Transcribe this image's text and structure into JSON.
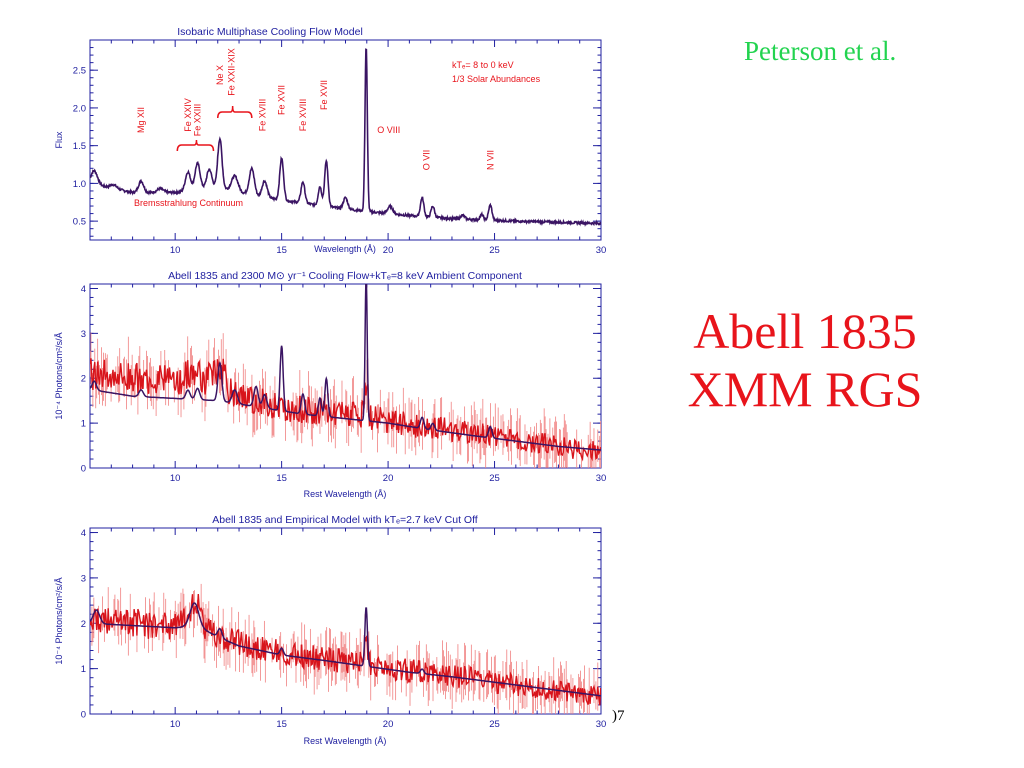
{
  "credit": "Peterson et al.",
  "headline": {
    "line1": "Abell 1835",
    "line2": "XMM RGS"
  },
  "footer_fragment": ")7",
  "colors": {
    "frame": "#2020a0",
    "model": "#3a1463",
    "data": "#d8141b",
    "data_err": "#f08080",
    "label": "#e8141b",
    "credit": "#22d34f"
  },
  "chart_data": [
    {
      "type": "line",
      "title": "Isobaric Multiphase Cooling Flow Model",
      "xlabel": "Wavelength (Å)",
      "ylabel": "Flux",
      "xlim": [
        6,
        30
      ],
      "ylim": [
        0.25,
        2.9
      ],
      "xticks": [
        10,
        15,
        20,
        25,
        30
      ],
      "yticks": [
        0.5,
        1.0,
        1.5,
        2.0,
        2.5
      ],
      "ytick_labels": [
        "0.5",
        "1.0",
        "1.5",
        "2.0",
        "2.5"
      ],
      "legend_lines": [
        "kTₑ= 8 to 0 keV",
        "1/3 Solar Abundances"
      ],
      "continuum_label": "Bremsstrahlung Continuum",
      "line_labels": [
        {
          "text": "Mg XII",
          "x": 8.4
        },
        {
          "text": "Fe XXIV",
          "x": 10.6
        },
        {
          "text": "Fe XXIII",
          "x": 11.05
        },
        {
          "text": "Ne X",
          "x": 12.1
        },
        {
          "text": "Fe XXII-XIX",
          "x": 12.65
        },
        {
          "text": "Fe XVIII",
          "x": 14.1
        },
        {
          "text": "Fe XVII",
          "x": 15.0
        },
        {
          "text": "Fe XVIII",
          "x": 16.0
        },
        {
          "text": "Fe XVII",
          "x": 17.0
        },
        {
          "text": "O VIII",
          "x": 19.4
        },
        {
          "text": "O VII",
          "x": 21.8
        },
        {
          "text": "N VII",
          "x": 24.8
        }
      ],
      "series": [
        {
          "continuum": [
            [
              6,
              1.0
            ],
            [
              8,
              0.88
            ],
            [
              10,
              0.88
            ],
            [
              12,
              0.95
            ],
            [
              14,
              0.82
            ],
            [
              16,
              0.74
            ],
            [
              18,
              0.66
            ],
            [
              20,
              0.6
            ],
            [
              22,
              0.55
            ],
            [
              24,
              0.52
            ],
            [
              26,
              0.5
            ],
            [
              30,
              0.47
            ]
          ],
          "lines": [
            [
              6.2,
              0.18,
              0.15
            ],
            [
              7.1,
              0.05,
              0.15
            ],
            [
              8.4,
              0.15,
              0.12
            ],
            [
              9.3,
              0.05,
              0.15
            ],
            [
              10.6,
              0.25,
              0.12
            ],
            [
              11.05,
              0.35,
              0.12
            ],
            [
              11.6,
              0.25,
              0.12
            ],
            [
              12.1,
              0.65,
              0.1
            ],
            [
              12.8,
              0.2,
              0.15
            ],
            [
              13.6,
              0.35,
              0.12
            ],
            [
              14.2,
              0.22,
              0.12
            ],
            [
              15.0,
              0.55,
              0.09
            ],
            [
              16.0,
              0.28,
              0.09
            ],
            [
              16.8,
              0.25,
              0.08
            ],
            [
              17.1,
              0.6,
              0.08
            ],
            [
              18.0,
              0.15,
              0.1
            ],
            [
              18.97,
              2.18,
              0.055
            ],
            [
              20.1,
              0.1,
              0.12
            ],
            [
              21.6,
              0.25,
              0.08
            ],
            [
              22.1,
              0.15,
              0.08
            ],
            [
              23.5,
              0.05,
              0.1
            ],
            [
              24.4,
              0.07,
              0.08
            ],
            [
              24.8,
              0.2,
              0.08
            ]
          ]
        }
      ]
    },
    {
      "type": "line",
      "title": "Abell 1835 and 2300 M⊙ yr⁻¹ Cooling Flow+kTₑ=8 keV Ambient Component",
      "xlabel": "Rest Wavelength (Å)",
      "ylabel": "10⁻⁴ Photons/cm²/s/Å",
      "xlim": [
        6,
        30
      ],
      "ylim": [
        0,
        4.1
      ],
      "xticks": [
        10,
        15,
        20,
        25,
        30
      ],
      "yticks": [
        0,
        1,
        2,
        3,
        4
      ],
      "ytick_labels": [
        "0",
        "1",
        "2",
        "3",
        "4"
      ],
      "series": [
        {
          "name": "data",
          "continuum": [
            [
              6,
              2.1
            ],
            [
              8,
              2.0
            ],
            [
              10,
              1.95
            ],
            [
              11.5,
              1.85
            ],
            [
              13,
              1.6
            ],
            [
              15,
              1.35
            ],
            [
              17,
              1.25
            ],
            [
              19,
              1.15
            ],
            [
              21,
              0.95
            ],
            [
              23,
              0.85
            ],
            [
              25,
              0.7
            ],
            [
              27,
              0.55
            ],
            [
              29,
              0.42
            ],
            [
              30,
              0.4
            ]
          ],
          "lines": [
            [
              10.9,
              0.3,
              0.3
            ],
            [
              11.8,
              0.3,
              0.2
            ],
            [
              12.2,
              0.4,
              0.15
            ],
            [
              18.97,
              0.7,
              0.08
            ]
          ],
          "scatter": 0.35
        },
        {
          "name": "model",
          "continuum": [
            [
              6,
              1.75
            ],
            [
              8,
              1.6
            ],
            [
              10,
              1.55
            ],
            [
              12,
              1.5
            ],
            [
              14,
              1.35
            ],
            [
              16,
              1.2
            ],
            [
              18,
              1.1
            ],
            [
              20,
              1.0
            ],
            [
              22,
              0.85
            ],
            [
              24,
              0.72
            ],
            [
              26,
              0.6
            ],
            [
              28,
              0.48
            ],
            [
              30,
              0.4
            ]
          ],
          "lines": [
            [
              6.2,
              0.2,
              0.1
            ],
            [
              8.4,
              0.15,
              0.1
            ],
            [
              10.6,
              0.2,
              0.1
            ],
            [
              11.05,
              0.25,
              0.1
            ],
            [
              12.1,
              0.85,
              0.09
            ],
            [
              12.8,
              0.3,
              0.12
            ],
            [
              13.8,
              0.45,
              0.1
            ],
            [
              14.2,
              0.3,
              0.1
            ],
            [
              15.0,
              1.45,
              0.07
            ],
            [
              16.0,
              0.45,
              0.08
            ],
            [
              16.8,
              0.4,
              0.07
            ],
            [
              17.1,
              0.85,
              0.07
            ],
            [
              18.97,
              3.2,
              0.05
            ],
            [
              21.6,
              0.25,
              0.08
            ],
            [
              22.1,
              0.15,
              0.08
            ],
            [
              24.8,
              0.25,
              0.08
            ]
          ]
        }
      ]
    },
    {
      "type": "line",
      "title": "Abell 1835 and Empirical Model with kTₑ=2.7 keV Cut Off",
      "xlabel": "Rest Wavelength (Å)",
      "ylabel": "10⁻⁴ Photons/cm²/s/Å",
      "xlim": [
        6,
        30
      ],
      "ylim": [
        0,
        4.1
      ],
      "xticks": [
        10,
        15,
        20,
        25,
        30
      ],
      "yticks": [
        0,
        1,
        2,
        3,
        4
      ],
      "ytick_labels": [
        "0",
        "1",
        "2",
        "3",
        "4"
      ],
      "series": [
        {
          "name": "data",
          "continuum": [
            [
              6,
              2.1
            ],
            [
              8,
              2.0
            ],
            [
              10,
              1.95
            ],
            [
              11,
              2.1
            ],
            [
              12,
              1.75
            ],
            [
              13,
              1.55
            ],
            [
              15,
              1.35
            ],
            [
              17,
              1.2
            ],
            [
              19,
              1.1
            ],
            [
              21,
              0.95
            ],
            [
              23,
              0.85
            ],
            [
              25,
              0.7
            ],
            [
              27,
              0.58
            ],
            [
              29,
              0.45
            ],
            [
              30,
              0.4
            ]
          ],
          "lines": [
            [
              10.9,
              0.45,
              0.2
            ],
            [
              18.97,
              0.6,
              0.08
            ]
          ],
          "scatter": 0.33
        },
        {
          "name": "model",
          "continuum": [
            [
              6,
              2.0
            ],
            [
              8,
              1.95
            ],
            [
              10,
              1.9
            ],
            [
              11,
              1.95
            ],
            [
              12,
              1.7
            ],
            [
              13,
              1.5
            ],
            [
              15,
              1.3
            ],
            [
              17,
              1.18
            ],
            [
              19,
              1.05
            ],
            [
              21,
              0.92
            ],
            [
              23,
              0.82
            ],
            [
              25,
              0.7
            ],
            [
              27,
              0.58
            ],
            [
              29,
              0.46
            ],
            [
              30,
              0.4
            ]
          ],
          "lines": [
            [
              6.3,
              0.3,
              0.15
            ],
            [
              10.9,
              0.5,
              0.2
            ],
            [
              12.1,
              0.2,
              0.1
            ],
            [
              15.0,
              0.15,
              0.08
            ],
            [
              18.97,
              1.3,
              0.06
            ],
            [
              21.6,
              0.1,
              0.08
            ]
          ]
        }
      ]
    }
  ]
}
